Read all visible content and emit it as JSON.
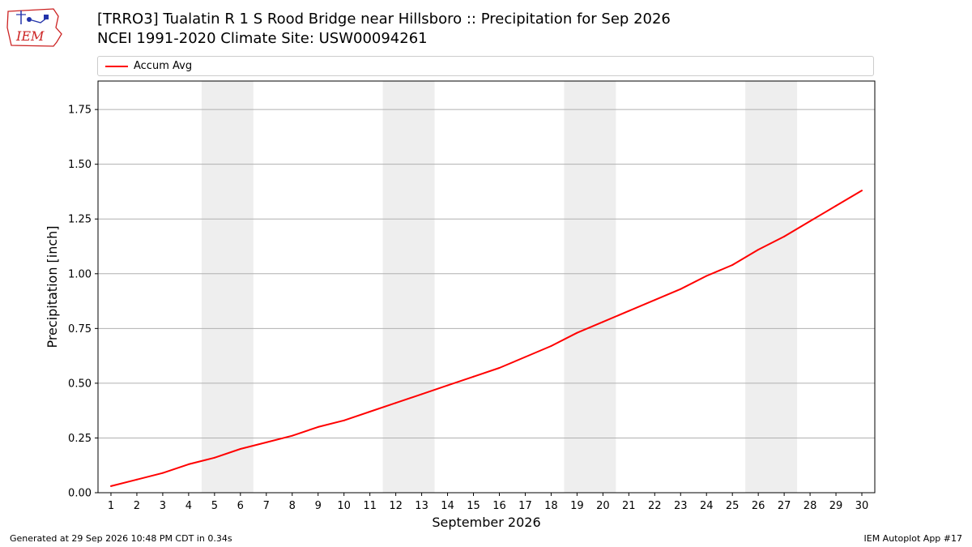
{
  "header": {
    "logo_text": "IEM",
    "title_line1": "[TRRO3] Tualatin R 1 S Rood Bridge near Hillsboro :: Precipitation for Sep 2026",
    "title_line2": "NCEI 1991-2020 Climate Site: USW00094261"
  },
  "footer": {
    "generated": "Generated at 29 Sep 2026 10:48 PM CDT in 0.34s",
    "app": "IEM Autoplot App #17"
  },
  "colors": {
    "series": "#ff0000",
    "weekend_band": "#eeeeee",
    "grid": "#b0b0b0"
  },
  "chart_data": {
    "type": "line",
    "title": "[TRRO3] Tualatin R 1 S Rood Bridge near Hillsboro :: Precipitation for Sep 2026",
    "subtitle": "NCEI 1991-2020 Climate Site: USW00094261",
    "xlabel": "September 2026",
    "ylabel": "Precipitation [inch]",
    "xlim": [
      0.5,
      30.5
    ],
    "ylim": [
      0,
      1.88
    ],
    "grid": "horizontal",
    "legend_position": "top",
    "x": [
      1,
      2,
      3,
      4,
      5,
      6,
      7,
      8,
      9,
      10,
      11,
      12,
      13,
      14,
      15,
      16,
      17,
      18,
      19,
      20,
      21,
      22,
      23,
      24,
      25,
      26,
      27,
      28,
      29,
      30
    ],
    "xticks": [
      "1",
      "2",
      "3",
      "4",
      "5",
      "6",
      "7",
      "8",
      "9",
      "10",
      "11",
      "12",
      "13",
      "14",
      "15",
      "16",
      "17",
      "18",
      "19",
      "20",
      "21",
      "22",
      "23",
      "24",
      "25",
      "26",
      "27",
      "28",
      "29",
      "30"
    ],
    "yticks": [
      0.0,
      0.25,
      0.5,
      0.75,
      1.0,
      1.25,
      1.5,
      1.75
    ],
    "ytick_labels": [
      "0.00",
      "0.25",
      "0.50",
      "0.75",
      "1.00",
      "1.25",
      "1.50",
      "1.75"
    ],
    "weekend_bands": [
      [
        4.5,
        6.5
      ],
      [
        11.5,
        13.5
      ],
      [
        18.5,
        20.5
      ],
      [
        25.5,
        27.5
      ]
    ],
    "series": [
      {
        "name": "Accum Avg",
        "color": "#ff0000",
        "values": [
          0.03,
          0.06,
          0.09,
          0.13,
          0.16,
          0.2,
          0.23,
          0.26,
          0.3,
          0.33,
          0.37,
          0.41,
          0.45,
          0.49,
          0.53,
          0.57,
          0.62,
          0.67,
          0.73,
          0.78,
          0.83,
          0.88,
          0.93,
          0.99,
          1.04,
          1.11,
          1.17,
          1.24,
          1.31,
          1.38
        ]
      }
    ]
  }
}
